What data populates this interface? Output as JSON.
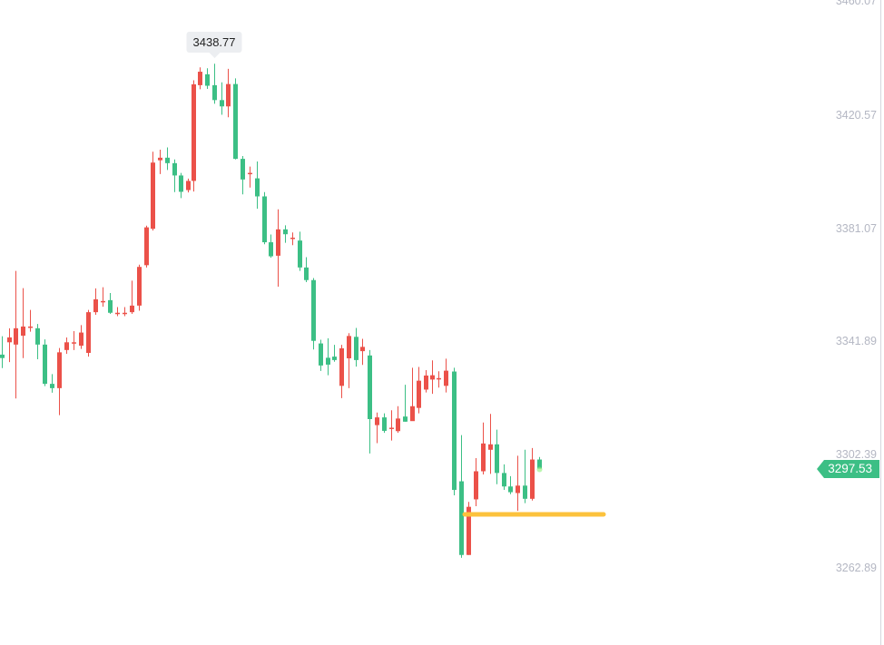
{
  "chart_data": {
    "type": "candlestick",
    "title": "",
    "xlabel": "",
    "ylabel": "",
    "ylim": [
      3262.89,
      3460.07
    ],
    "grid": false,
    "up_color": "#eb5149",
    "down_color": "#3cbf85",
    "y_ticks": [
      "3460.07",
      "3420.57",
      "3381.07",
      "3341.89",
      "3302.39",
      "3262.89"
    ],
    "last_price": "3297.53",
    "high_marker": "3438.77",
    "support_line": {
      "price": 3283.1,
      "x_start": 512,
      "x_end": 665,
      "color": "#fcc23c"
    },
    "candles": [
      {
        "x": 2,
        "o": 3337.3,
        "c": 3336.1,
        "h": 3343.7,
        "l": 3332.6,
        "dir": "down-red"
      },
      {
        "x": 10,
        "o": 3341.6,
        "c": 3343.3,
        "h": 3346.5,
        "l": 3334.7
      },
      {
        "x": 17,
        "o": 3340.8,
        "c": 3346.5,
        "h": 3366.5,
        "l": 3322.0
      },
      {
        "x": 25,
        "o": 3343.9,
        "c": 3347.1,
        "h": 3360.5,
        "l": 3336.1
      },
      {
        "x": 33,
        "o": 3346.8,
        "c": 3347.1,
        "h": 3352.9,
        "l": 3345.3
      },
      {
        "x": 41,
        "o": 3346.5,
        "c": 3340.8,
        "h": 3348.0,
        "l": 3335.7
      },
      {
        "x": 49,
        "o": 3340.8,
        "c": 3327.1,
        "h": 3342.6,
        "l": 3326.3
      },
      {
        "x": 57,
        "o": 3327.1,
        "c": 3325.6,
        "h": 3330.5,
        "l": 3324.0
      },
      {
        "x": 65,
        "o": 3325.6,
        "c": 3338.1,
        "h": 3339.6,
        "l": 3316.2
      },
      {
        "x": 73,
        "o": 3338.9,
        "c": 3341.6,
        "h": 3343.3,
        "l": 3337.6
      },
      {
        "x": 81,
        "o": 3341.6,
        "c": 3341.6,
        "h": 3345.5,
        "l": 3338.9
      },
      {
        "x": 89,
        "o": 3340.4,
        "c": 3345.0,
        "h": 3347.6,
        "l": 3339.3
      },
      {
        "x": 97,
        "o": 3337.9,
        "c": 3352.1,
        "h": 3352.9,
        "l": 3336.6
      },
      {
        "x": 105,
        "o": 3352.1,
        "c": 3356.6,
        "h": 3360.4,
        "l": 3351.2
      },
      {
        "x": 113,
        "o": 3356.0,
        "c": 3356.0,
        "h": 3360.8,
        "l": 3354.0
      },
      {
        "x": 121,
        "o": 3356.3,
        "c": 3351.9,
        "h": 3358.8,
        "l": 3351.5
      },
      {
        "x": 129,
        "o": 3351.9,
        "c": 3351.9,
        "h": 3353.9,
        "l": 3350.7
      },
      {
        "x": 137,
        "o": 3351.9,
        "c": 3351.9,
        "h": 3353.9,
        "l": 3350.7
      },
      {
        "x": 145,
        "o": 3352.1,
        "c": 3354.4,
        "h": 3363.1,
        "l": 3351.5
      },
      {
        "x": 153,
        "o": 3354.4,
        "c": 3367.9,
        "h": 3368.7,
        "l": 3352.6
      },
      {
        "x": 161,
        "o": 3368.5,
        "c": 3381.7,
        "h": 3382.3,
        "l": 3367.7
      },
      {
        "x": 168,
        "o": 3381.2,
        "c": 3404.3,
        "h": 3408.1,
        "l": 3380.6
      },
      {
        "x": 176,
        "o": 3405.1,
        "c": 3406.0,
        "h": 3408.8,
        "l": 3400.3
      },
      {
        "x": 184,
        "o": 3406.0,
        "c": 3404.1,
        "h": 3409.6,
        "l": 3401.7
      },
      {
        "x": 192,
        "o": 3404.1,
        "c": 3399.8,
        "h": 3405.4,
        "l": 3394.0
      },
      {
        "x": 199,
        "o": 3399.8,
        "c": 3394.1,
        "h": 3400.7,
        "l": 3391.9
      },
      {
        "x": 207,
        "o": 3394.7,
        "c": 3397.9,
        "h": 3398.7,
        "l": 3393.9
      },
      {
        "x": 213,
        "o": 3397.9,
        "c": 3431.6,
        "h": 3433.0,
        "l": 3394.2
      },
      {
        "x": 220,
        "o": 3431.3,
        "c": 3436.0,
        "h": 3437.5,
        "l": 3429.9
      },
      {
        "x": 228,
        "o": 3435.1,
        "c": 3431.1,
        "h": 3437.2,
        "l": 3430.0
      },
      {
        "x": 236,
        "o": 3431.3,
        "c": 3426.1,
        "h": 3438.77,
        "l": 3424.8
      },
      {
        "x": 244,
        "o": 3426.1,
        "c": 3423.9,
        "h": 3432.3,
        "l": 3421.0
      },
      {
        "x": 251,
        "o": 3423.9,
        "c": 3431.7,
        "h": 3437.0,
        "l": 3420.1
      },
      {
        "x": 259,
        "o": 3431.7,
        "c": 3405.6,
        "h": 3433.7,
        "l": 3405.4
      },
      {
        "x": 267,
        "o": 3405.6,
        "c": 3398.4,
        "h": 3406.6,
        "l": 3393.2
      },
      {
        "x": 275,
        "o": 3400.7,
        "c": 3400.7,
        "h": 3402.9,
        "l": 3395.6
      },
      {
        "x": 283,
        "o": 3398.8,
        "c": 3392.5,
        "h": 3404.7,
        "l": 3388.2
      },
      {
        "x": 291,
        "o": 3392.5,
        "c": 3376.5,
        "h": 3394.0,
        "l": 3375.8
      },
      {
        "x": 298,
        "o": 3376.5,
        "c": 3371.6,
        "h": 3379.2,
        "l": 3371.1
      },
      {
        "x": 306,
        "o": 3371.8,
        "c": 3381.0,
        "h": 3388.0,
        "l": 3361.0
      },
      {
        "x": 314,
        "o": 3381.0,
        "c": 3379.3,
        "h": 3382.4,
        "l": 3376.3
      },
      {
        "x": 322,
        "o": 3378.1,
        "c": 3378.1,
        "h": 3379.9,
        "l": 3375.5
      },
      {
        "x": 330,
        "o": 3377.1,
        "c": 3367.7,
        "h": 3380.2,
        "l": 3366.5
      },
      {
        "x": 337,
        "o": 3367.7,
        "c": 3363.3,
        "h": 3371.3,
        "l": 3362.6
      },
      {
        "x": 345,
        "o": 3363.3,
        "c": 3342.1,
        "h": 3364.0,
        "l": 3339.1
      },
      {
        "x": 353,
        "o": 3341.2,
        "c": 3333.5,
        "h": 3342.5,
        "l": 3331.6
      },
      {
        "x": 361,
        "o": 3336.2,
        "c": 3333.8,
        "h": 3343.0,
        "l": 3330.1
      },
      {
        "x": 368,
        "o": 3336.6,
        "c": 3335.4,
        "h": 3340.7,
        "l": 3334.8
      },
      {
        "x": 376,
        "o": 3326.4,
        "c": 3339.5,
        "h": 3340.7,
        "l": 3322.1
      },
      {
        "x": 384,
        "o": 3336.0,
        "c": 3343.8,
        "h": 3344.8,
        "l": 3325.6
      },
      {
        "x": 392,
        "o": 3343.5,
        "c": 3335.4,
        "h": 3346.6,
        "l": 3333.1
      },
      {
        "x": 399,
        "o": 3338.5,
        "c": 3340.0,
        "h": 3342.8,
        "l": 3333.7
      },
      {
        "x": 407,
        "o": 3337.0,
        "c": 3314.8,
        "h": 3338.9,
        "l": 3302.8
      },
      {
        "x": 415,
        "o": 3312.7,
        "c": 3315.4,
        "h": 3317.1,
        "l": 3306.4
      },
      {
        "x": 423,
        "o": 3315.4,
        "c": 3310.7,
        "h": 3316.8,
        "l": 3310.0
      },
      {
        "x": 431,
        "o": 3311.8,
        "c": 3311.8,
        "h": 3317.9,
        "l": 3307.3
      },
      {
        "x": 438,
        "o": 3310.6,
        "c": 3315.0,
        "h": 3319.3,
        "l": 3310.0
      },
      {
        "x": 446,
        "o": 3315.7,
        "c": 3313.9,
        "h": 3326.8,
        "l": 3313.9
      },
      {
        "x": 454,
        "o": 3314.1,
        "c": 3319.3,
        "h": 3332.7,
        "l": 3314.2
      },
      {
        "x": 461,
        "o": 3318.7,
        "c": 3328.2,
        "h": 3333.0,
        "l": 3316.8
      },
      {
        "x": 469,
        "o": 3325.1,
        "c": 3330.0,
        "h": 3331.9,
        "l": 3324.1
      },
      {
        "x": 476,
        "o": 3328.6,
        "c": 3330.1,
        "h": 3335.3,
        "l": 3323.6
      },
      {
        "x": 483,
        "o": 3329.1,
        "c": 3329.1,
        "h": 3331.5,
        "l": 3325.8
      },
      {
        "x": 491,
        "o": 3326.4,
        "c": 3331.7,
        "h": 3335.9,
        "l": 3324.1
      },
      {
        "x": 500,
        "o": 3331.4,
        "c": 3290.1,
        "h": 3332.7,
        "l": 3288.2
      },
      {
        "x": 508,
        "o": 3293.1,
        "c": 3267.4,
        "h": 3309.2,
        "l": 3266.4
      },
      {
        "x": 516,
        "o": 3267.4,
        "c": 3284.2,
        "h": 3285.9,
        "l": 3267.4
      },
      {
        "x": 524,
        "o": 3286.8,
        "c": 3296.6,
        "h": 3301.2,
        "l": 3284.4
      },
      {
        "x": 532,
        "o": 3296.6,
        "c": 3306.3,
        "h": 3313.6,
        "l": 3295.5
      },
      {
        "x": 540,
        "o": 3304.1,
        "c": 3306.0,
        "h": 3316.6,
        "l": 3295.7
      },
      {
        "x": 547,
        "o": 3306.0,
        "c": 3296.0,
        "h": 3311.1,
        "l": 3292.1
      },
      {
        "x": 555,
        "o": 3296.0,
        "c": 3291.3,
        "h": 3299.0,
        "l": 3290.1
      },
      {
        "x": 562,
        "o": 3291.3,
        "c": 3289.3,
        "h": 3294.9,
        "l": 3288.6
      },
      {
        "x": 570,
        "o": 3289.0,
        "c": 3291.6,
        "h": 3302.0,
        "l": 3282.8
      },
      {
        "x": 578,
        "o": 3291.6,
        "c": 3287.0,
        "h": 3304.1,
        "l": 3285.5
      },
      {
        "x": 586,
        "o": 3287.0,
        "c": 3300.7,
        "h": 3304.7,
        "l": 3286.4
      },
      {
        "x": 594,
        "o": 3300.7,
        "c": 3297.53,
        "h": 3301.6,
        "l": 3297.53
      }
    ]
  }
}
